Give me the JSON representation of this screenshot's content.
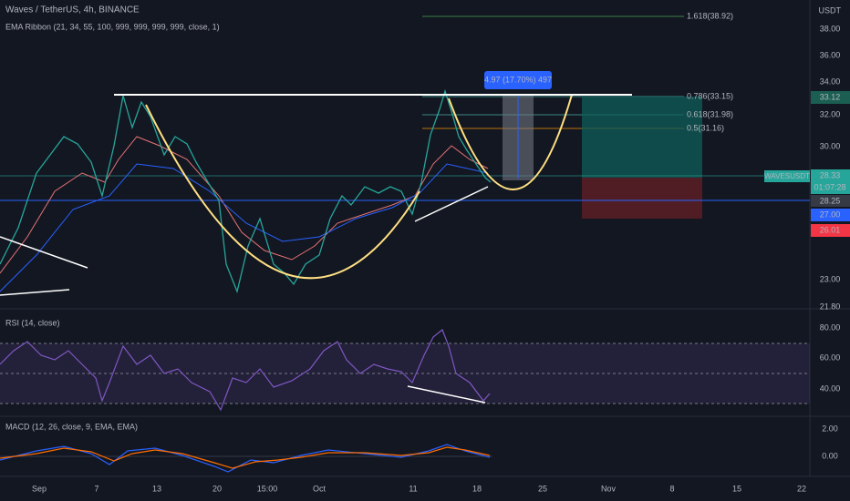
{
  "header": {
    "symbol": "Waves / TetherUS, 4h, BINANCE",
    "indicator": "EMA Ribbon (21, 34, 55, 100, 999, 999, 999, 999, close, 1)"
  },
  "price_axis": {
    "currency": "USDT",
    "labels": [
      "38.00",
      "36.00",
      "34.00",
      "32.00",
      "30.00",
      "23.00",
      "21.80"
    ]
  },
  "price_tags": {
    "last": "33.12",
    "symbol": "WAVESUSDT",
    "price": "28.33",
    "countdown": "01:07:28",
    "level_1": "28.25",
    "level_2": "27.00",
    "level_3": "26.01"
  },
  "fib_levels": [
    "1.618(38.92)",
    "0.786(33.15)",
    "0.618(31.98)",
    "0.5(31.16)"
  ],
  "measure": "4.97 (17.70%) 497",
  "rsi": {
    "title": "RSI (14, close)",
    "axis": [
      "80.00",
      "60.00",
      "40.00"
    ]
  },
  "macd": {
    "title": "MACD (12, 26, close, 9, EMA, EMA)",
    "axis": [
      "2.00",
      "0.00"
    ]
  },
  "time_axis": [
    "Sep",
    "7",
    "13",
    "20",
    "15:00",
    "Oct",
    "11",
    "18",
    "25",
    "Nov",
    "8",
    "15",
    "22"
  ]
}
